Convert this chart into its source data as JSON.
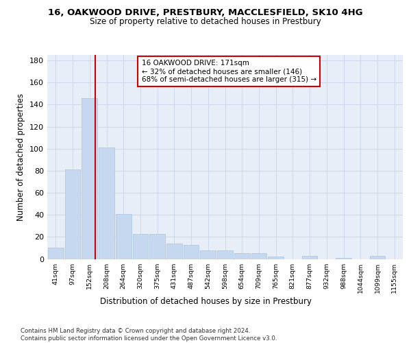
{
  "title_line1": "16, OAKWOOD DRIVE, PRESTBURY, MACCLESFIELD, SK10 4HG",
  "title_line2": "Size of property relative to detached houses in Prestbury",
  "xlabel": "Distribution of detached houses by size in Prestbury",
  "ylabel": "Number of detached properties",
  "bar_color": "#c5d8f0",
  "bar_edgecolor": "#a8c4e0",
  "grid_color": "#cdd8ea",
  "background_color": "#e8eef8",
  "vline_color": "#cc0000",
  "vline_bin": 2,
  "categories": [
    "41sqm",
    "97sqm",
    "152sqm",
    "208sqm",
    "264sqm",
    "320sqm",
    "375sqm",
    "431sqm",
    "487sqm",
    "542sqm",
    "598sqm",
    "654sqm",
    "709sqm",
    "765sqm",
    "821sqm",
    "877sqm",
    "932sqm",
    "988sqm",
    "1044sqm",
    "1099sqm",
    "1155sqm"
  ],
  "values": [
    10,
    81,
    146,
    101,
    41,
    23,
    23,
    14,
    13,
    8,
    8,
    5,
    5,
    2,
    0,
    3,
    0,
    1,
    0,
    3,
    0
  ],
  "ylim": [
    0,
    185
  ],
  "yticks": [
    0,
    20,
    40,
    60,
    80,
    100,
    120,
    140,
    160,
    180
  ],
  "annotation_text": "16 OAKWOOD DRIVE: 171sqm\n← 32% of detached houses are smaller (146)\n68% of semi-detached houses are larger (315) →",
  "annotation_box_facecolor": "#ffffff",
  "annotation_box_edgecolor": "#cc0000",
  "footer_line1": "Contains HM Land Registry data © Crown copyright and database right 2024.",
  "footer_line2": "Contains public sector information licensed under the Open Government Licence v3.0."
}
